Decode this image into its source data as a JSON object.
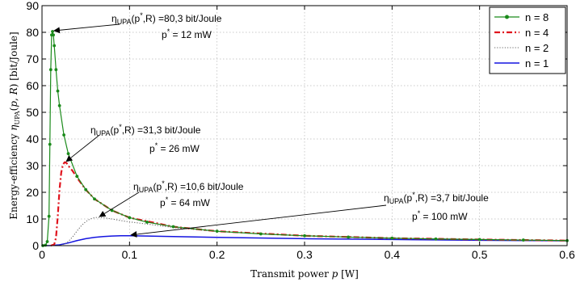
{
  "chart_data": {
    "type": "line",
    "xlabel_parts": [
      "Transmit power ",
      "p",
      " [W]"
    ],
    "ylabel_parts": [
      "Energy-efficiency ",
      "η",
      "UPA",
      "(",
      "p",
      ", ",
      "R",
      ") [bit/Joule]"
    ],
    "xlim": [
      0,
      0.6
    ],
    "ylim": [
      0,
      90
    ],
    "xticks": [
      0,
      0.1,
      0.2,
      0.3,
      0.4,
      0.5,
      0.6
    ],
    "xtick_labels": [
      "0",
      "0.1",
      "0.2",
      "0.3",
      "0.4",
      "0.5",
      "0.6"
    ],
    "yticks": [
      0,
      10,
      20,
      30,
      40,
      50,
      60,
      70,
      80,
      90
    ],
    "ytick_labels": [
      "0",
      "10",
      "20",
      "30",
      "40",
      "50",
      "60",
      "70",
      "80",
      "90"
    ],
    "grid": true,
    "legend_position": "top-right",
    "series": [
      {
        "name": "n = 8",
        "color": "#1a8a1a",
        "style": "solid-with-dots",
        "x": [
          0.001,
          0.004,
          0.006,
          0.008,
          0.009,
          0.01,
          0.011,
          0.012,
          0.013,
          0.014,
          0.016,
          0.018,
          0.02,
          0.025,
          0.03,
          0.04,
          0.05,
          0.06,
          0.08,
          0.1,
          0.12,
          0.15,
          0.2,
          0.25,
          0.3,
          0.35,
          0.4,
          0.45,
          0.5,
          0.55,
          0.6
        ],
        "y": [
          0,
          0.2,
          1.5,
          11,
          38,
          66,
          79,
          80.3,
          79,
          75,
          66,
          58,
          52.5,
          41.5,
          34.5,
          26,
          21,
          17.5,
          13.2,
          10.5,
          8.8,
          7.1,
          5.4,
          4.4,
          3.7,
          3.2,
          2.8,
          2.5,
          2.3,
          2.1,
          1.9
        ]
      },
      {
        "name": "n = 4",
        "color": "#e0141e",
        "style": "dashdot",
        "x": [
          0.01,
          0.014,
          0.016,
          0.018,
          0.02,
          0.022,
          0.024,
          0.026,
          0.028,
          0.03,
          0.035,
          0.04,
          0.05,
          0.06,
          0.08,
          0.1,
          0.15,
          0.2,
          0.3,
          0.4,
          0.5,
          0.6
        ],
        "y": [
          0,
          0.5,
          3,
          11,
          21,
          27.5,
          30.5,
          31.3,
          31,
          30,
          28,
          25.5,
          21,
          17.5,
          13.2,
          10.5,
          7.1,
          5.4,
          3.7,
          2.8,
          2.3,
          1.9
        ]
      },
      {
        "name": "n = 2",
        "color": "#666666",
        "style": "dotted",
        "x": [
          0.015,
          0.02,
          0.025,
          0.03,
          0.035,
          0.04,
          0.045,
          0.05,
          0.055,
          0.06,
          0.064,
          0.07,
          0.08,
          0.09,
          0.1,
          0.12,
          0.15,
          0.2,
          0.3,
          0.4,
          0.5,
          0.6
        ],
        "y": [
          0,
          0.1,
          0.5,
          1.5,
          3.3,
          5.5,
          7.5,
          9,
          10,
          10.5,
          10.6,
          10.5,
          10,
          9.4,
          8.9,
          8.1,
          6.8,
          5.3,
          3.7,
          2.8,
          2.3,
          1.9
        ]
      },
      {
        "name": "n = 1",
        "color": "#1414e0",
        "style": "solid",
        "x": [
          0.0,
          0.01,
          0.02,
          0.03,
          0.04,
          0.05,
          0.06,
          0.07,
          0.08,
          0.09,
          0.1,
          0.12,
          0.15,
          0.2,
          0.3,
          0.4,
          0.5,
          0.6
        ],
        "y": [
          0,
          0.05,
          0.3,
          1,
          1.9,
          2.6,
          3.1,
          3.4,
          3.6,
          3.7,
          3.7,
          3.6,
          3.4,
          3.1,
          2.6,
          2.3,
          2.0,
          1.8
        ]
      }
    ],
    "annotations": [
      {
        "eta_prefix": "η",
        "eta_sub": "UPA",
        "eta_open": "(p",
        "eta_sup": "*",
        "eta_rest": ",R) =80,3 bit/Joule",
        "p_prefix": "p",
        "p_sup": "*",
        "p_rest": " = 12 mW",
        "target": [
          0.012,
          80.3
        ]
      },
      {
        "eta_prefix": "η",
        "eta_sub": "UPA",
        "eta_open": "(p",
        "eta_sup": "*",
        "eta_rest": ",R) =31,3 bit/Joule",
        "p_prefix": "p",
        "p_sup": "*",
        "p_rest": " = 26 mW",
        "target": [
          0.026,
          31.3
        ]
      },
      {
        "eta_prefix": "η",
        "eta_sub": "UPA",
        "eta_open": "(p",
        "eta_sup": "*",
        "eta_rest": ",R) =10,6 bit/Joule",
        "p_prefix": "p",
        "p_sup": "*",
        "p_rest": " = 64 mW",
        "target": [
          0.064,
          10.6
        ]
      },
      {
        "eta_prefix": "η",
        "eta_sub": "UPA",
        "eta_open": "(p",
        "eta_sup": "*",
        "eta_rest": ",R) =3,7 bit/Joule",
        "p_prefix": "p",
        "p_sup": "*",
        "p_rest": " = 100 mW",
        "target": [
          0.1,
          3.7
        ]
      }
    ]
  }
}
